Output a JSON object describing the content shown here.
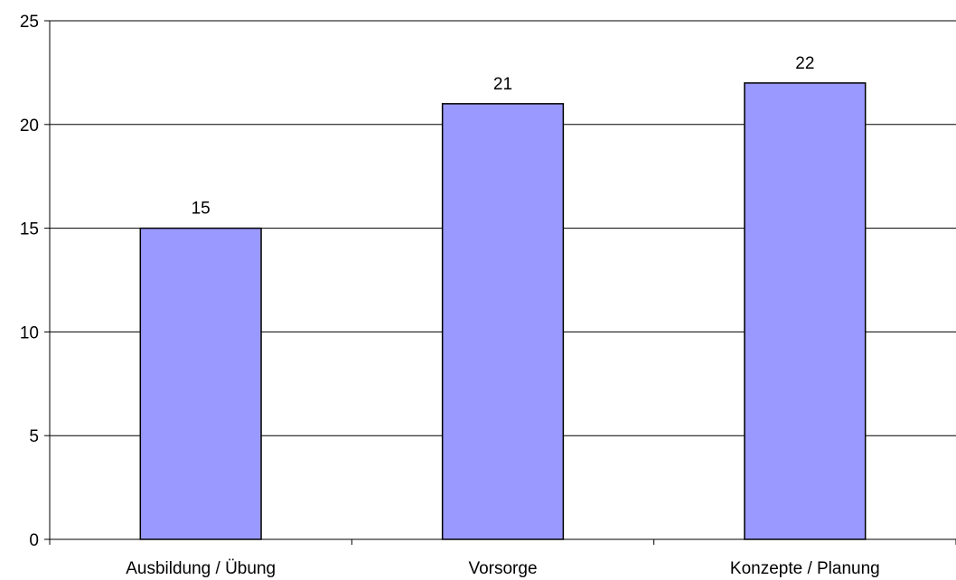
{
  "chart_data": {
    "type": "bar",
    "categories": [
      "Ausbildung / Übung",
      "Vorsorge",
      "Konzepte / Planung"
    ],
    "values": [
      15,
      21,
      22
    ],
    "data_labels": [
      "15",
      "21",
      "22"
    ],
    "title": "",
    "xlabel": "",
    "ylabel": "",
    "ylim": [
      0,
      25
    ],
    "yticks": [
      0,
      5,
      10,
      15,
      20,
      25
    ],
    "ytick_labels": [
      "0",
      "5",
      "10",
      "15",
      "20",
      "25"
    ],
    "grid": "horizontal",
    "legend": "none",
    "colors": {
      "bar_fill": "#9999ff",
      "bar_stroke": "#000000",
      "gridline": "#000000",
      "axis": "#000000"
    }
  }
}
